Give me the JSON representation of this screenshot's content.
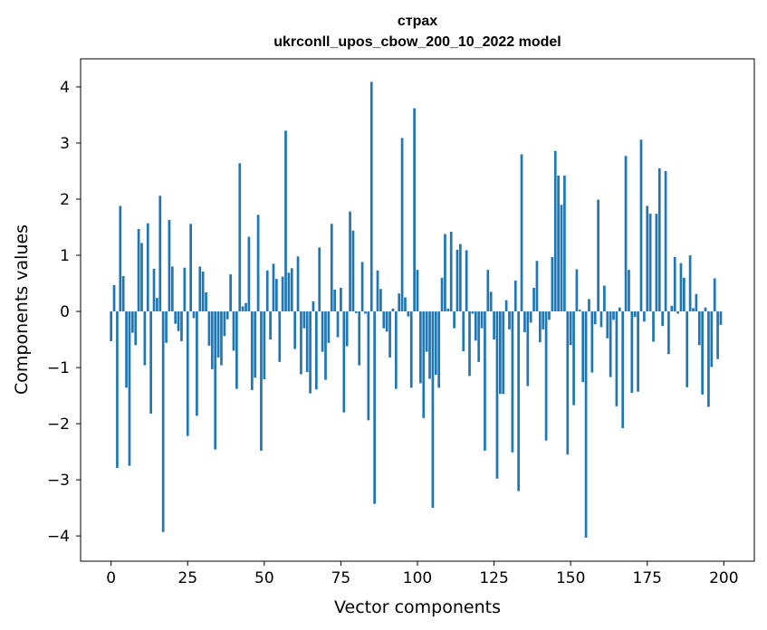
{
  "chart_data": {
    "type": "bar",
    "title": "страх",
    "subtitle": "ukrconll_upos_cbow_200_10_2022 model",
    "xlabel": "Vector components",
    "ylabel": "Components values",
    "xlim": [
      -9.95,
      209.95
    ],
    "ylim": [
      -4.45,
      4.5
    ],
    "xticks": [
      0,
      25,
      50,
      75,
      100,
      125,
      150,
      175,
      200
    ],
    "yticks": [
      -4,
      -3,
      -2,
      -1,
      0,
      1,
      2,
      3,
      4
    ],
    "xtick_labels": [
      "0",
      "25",
      "50",
      "75",
      "100",
      "125",
      "150",
      "175",
      "200"
    ],
    "ytick_labels": [
      "−4",
      "−3",
      "−2",
      "−1",
      "0",
      "1",
      "2",
      "3",
      "4"
    ],
    "bar_width": 0.8,
    "color": "#1f77b4",
    "values": [
      -0.53,
      0.47,
      -2.79,
      1.88,
      0.63,
      -1.36,
      -2.75,
      -0.38,
      -0.6,
      1.47,
      1.22,
      -0.96,
      1.57,
      -1.82,
      0.76,
      0.24,
      2.06,
      -3.93,
      -0.56,
      1.63,
      0.8,
      -0.22,
      -0.35,
      -0.53,
      0.78,
      -2.22,
      1.56,
      -0.12,
      -1.86,
      0.8,
      0.71,
      0.34,
      -0.61,
      -1.03,
      -2.46,
      -0.82,
      -0.96,
      -0.44,
      -0.14,
      0.66,
      -0.7,
      -1.38,
      2.64,
      0.09,
      0.15,
      1.33,
      -1.4,
      -1.18,
      1.72,
      -2.48,
      -1.21,
      0.73,
      -0.5,
      0.85,
      0.58,
      -0.9,
      0.62,
      3.22,
      0.69,
      0.77,
      -0.67,
      0.98,
      -1.12,
      -0.3,
      -1.08,
      -1.46,
      0.18,
      -1.39,
      1.14,
      -0.72,
      -1.22,
      -0.56,
      1.56,
      0.39,
      -0.46,
      0.42,
      -1.8,
      -0.62,
      1.78,
      1.44,
      -0.03,
      -0.96,
      0.88,
      -0.04,
      -1.94,
      4.09,
      -3.43,
      0.73,
      0.4,
      -0.3,
      -0.36,
      -0.82,
      0.05,
      -1.38,
      0.32,
      3.09,
      0.25,
      -0.09,
      -1.36,
      3.62,
      0.74,
      -1.28,
      -1.9,
      -0.72,
      -1.2,
      -3.5,
      -1.13,
      -1.36,
      0.6,
      1.38,
      0.05,
      1.42,
      -0.3,
      1.1,
      1.2,
      -0.71,
      1.09,
      -1.15,
      -0.04,
      -0.52,
      -0.9,
      -0.3,
      -2.48,
      0.74,
      0.35,
      -0.5,
      -2.98,
      -1.47,
      -1.47,
      0.2,
      -0.32,
      -2.51,
      0.55,
      -3.2,
      2.8,
      -0.37,
      -1.33,
      -0.2,
      0.42,
      0.9,
      -0.55,
      -0.32,
      -2.3,
      -0.15,
      0.97,
      2.86,
      2.42,
      1.9,
      2.42,
      -2.55,
      -0.6,
      -1.67,
      0.75,
      0.03,
      -1.26,
      -4.03,
      0.22,
      -1.09,
      -0.23,
      1.99,
      -0.28,
      0.46,
      -0.48,
      -1.17,
      -0.15,
      -1.69,
      0.07,
      -2.08,
      2.77,
      0.74,
      -1.45,
      -0.1,
      -1.43,
      3.06,
      -0.18,
      1.88,
      1.74,
      -0.54,
      1.74,
      2.55,
      -0.26,
      2.5,
      -0.76,
      0.1,
      0.97,
      -0.04,
      0.86,
      0.6,
      -1.35,
      1.0,
      0.06,
      0.31,
      -0.6,
      -1.48,
      0.07,
      -1.7,
      -0.99,
      0.59,
      -0.85,
      -0.24
    ]
  }
}
